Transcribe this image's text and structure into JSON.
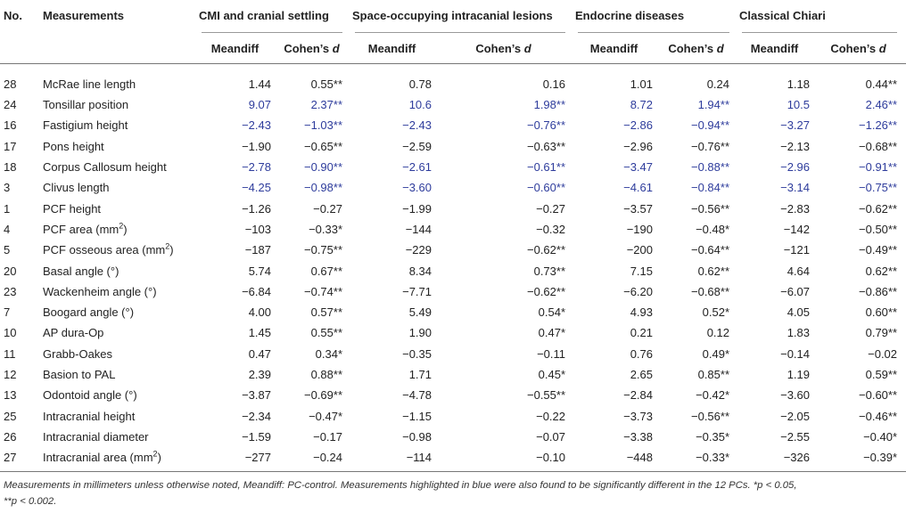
{
  "header": {
    "no": "No.",
    "measurements": "Measurements",
    "groups": [
      "CMI and cranial settling",
      "Space-occupying intracanial lesions",
      "Endocrine diseases",
      "Classical Chiari"
    ],
    "meandiff": "Meandiff",
    "cohens": "Cohen’s",
    "d": "d"
  },
  "rows": [
    {
      "no": "28",
      "name": "McRae line length",
      "sup": "",
      "blue": false,
      "vals": [
        "1.44",
        "0.55**",
        "0.78",
        "0.16",
        "1.01",
        "0.24",
        "1.18",
        "0.44**"
      ]
    },
    {
      "no": "24",
      "name": "Tonsillar position",
      "sup": "",
      "blue": true,
      "vals": [
        "9.07",
        "2.37**",
        "10.6",
        "1.98**",
        "8.72",
        "1.94**",
        "10.5",
        "2.46**"
      ]
    },
    {
      "no": "16",
      "name": "Fastigium height",
      "sup": "",
      "blue": true,
      "vals": [
        "−2.43",
        "−1.03**",
        "−2.43",
        "−0.76**",
        "−2.86",
        "−0.94**",
        "−3.27",
        "−1.26**"
      ]
    },
    {
      "no": "17",
      "name": "Pons height",
      "sup": "",
      "blue": false,
      "vals": [
        "−1.90",
        "−0.65**",
        "−2.59",
        "−0.63**",
        "−2.96",
        "−0.76**",
        "−2.13",
        "−0.68**"
      ]
    },
    {
      "no": "18",
      "name": "Corpus Callosum height",
      "sup": "",
      "blue": true,
      "vals": [
        "−2.78",
        "−0.90**",
        "−2.61",
        "−0.61**",
        "−3.47",
        "−0.88**",
        "−2.96",
        "−0.91**"
      ]
    },
    {
      "no": "3",
      "name": "Clivus length",
      "sup": "",
      "blue": true,
      "vals": [
        "−4.25",
        "−0.98**",
        "−3.60",
        "−0.60**",
        "−4.61",
        "−0.84**",
        "−3.14",
        "−0.75**"
      ]
    },
    {
      "no": "1",
      "name": "PCF height",
      "sup": "",
      "blue": false,
      "vals": [
        "−1.26",
        "−0.27",
        "−1.99",
        "−0.27",
        "−3.57",
        "−0.56**",
        "−2.83",
        "−0.62**"
      ]
    },
    {
      "no": "4",
      "name": "PCF area (mm",
      "sup": "2",
      "tail": ")",
      "blue": false,
      "vals": [
        "−103",
        "−0.33*",
        "−144",
        "−0.32",
        "−190",
        "−0.48*",
        "−142",
        "−0.50**"
      ]
    },
    {
      "no": "5",
      "name": "PCF osseous area (mm",
      "sup": "2",
      "tail": ")",
      "blue": false,
      "vals": [
        "−187",
        "−0.75**",
        "−229",
        "−0.62**",
        "−200",
        "−0.64**",
        "−121",
        "−0.49**"
      ]
    },
    {
      "no": "20",
      "name": "Basal angle (°)",
      "sup": "",
      "blue": false,
      "vals": [
        "5.74",
        "0.67**",
        "8.34",
        "0.73**",
        "7.15",
        "0.62**",
        "4.64",
        "0.62**"
      ]
    },
    {
      "no": "23",
      "name": "Wackenheim angle (°)",
      "sup": "",
      "blue": false,
      "vals": [
        "−6.84",
        "−0.74**",
        "−7.71",
        "−0.62**",
        "−6.20",
        "−0.68**",
        "−6.07",
        "−0.86**"
      ]
    },
    {
      "no": "7",
      "name": "Boogard angle (°)",
      "sup": "",
      "blue": false,
      "vals": [
        "4.00",
        "0.57**",
        "5.49",
        "0.54*",
        "4.93",
        "0.52*",
        "4.05",
        "0.60**"
      ]
    },
    {
      "no": "10",
      "name": "AP dura-Op",
      "sup": "",
      "blue": false,
      "vals": [
        "1.45",
        "0.55**",
        "1.90",
        "0.47*",
        "0.21",
        "0.12",
        "1.83",
        "0.79**"
      ]
    },
    {
      "no": "11",
      "name": "Grabb-Oakes",
      "sup": "",
      "blue": false,
      "vals": [
        "0.47",
        "0.34*",
        "−0.35",
        "−0.11",
        "0.76",
        "0.49*",
        "−0.14",
        "−0.02"
      ]
    },
    {
      "no": "12",
      "name": "Basion to PAL",
      "sup": "",
      "blue": false,
      "vals": [
        "2.39",
        "0.88**",
        "1.71",
        "0.45*",
        "2.65",
        "0.85**",
        "1.19",
        "0.59**"
      ]
    },
    {
      "no": "13",
      "name": "Odontoid angle (°)",
      "sup": "",
      "blue": false,
      "vals": [
        "−3.87",
        "−0.69**",
        "−4.78",
        "−0.55**",
        "−2.84",
        "−0.42*",
        "−3.60",
        "−0.60**"
      ]
    },
    {
      "no": "25",
      "name": "Intracranial height",
      "sup": "",
      "blue": false,
      "vals": [
        "−2.34",
        "−0.47*",
        "−1.15",
        "−0.22",
        "−3.73",
        "−0.56**",
        "−2.05",
        "−0.46**"
      ]
    },
    {
      "no": "26",
      "name": "Intracranial diameter",
      "sup": "",
      "blue": false,
      "vals": [
        "−1.59",
        "−0.17",
        "−0.98",
        "−0.07",
        "−3.38",
        "−0.35*",
        "−2.55",
        "−0.40*"
      ]
    },
    {
      "no": "27",
      "name": "Intracranial area (mm",
      "sup": "2",
      "tail": ")",
      "blue": false,
      "vals": [
        "−277",
        "−0.24",
        "−114",
        "−0.10",
        "−448",
        "−0.33*",
        "−326",
        "−0.39*"
      ]
    }
  ],
  "footnote": {
    "line1": "Measurements in millimeters unless otherwise noted, Meandiff: PC-control. Measurements highlighted in blue were also found to be significantly different in the 12 PCs. *p < 0.05,",
    "line2": "**p < 0.002."
  },
  "colors": {
    "blue": "#2e3c9c"
  }
}
